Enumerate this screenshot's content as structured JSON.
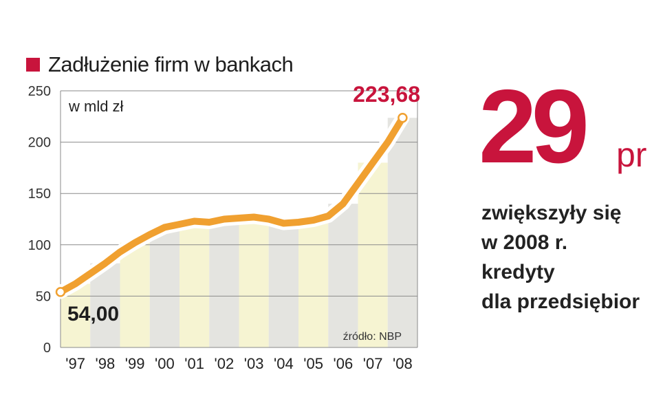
{
  "title": "Zadłużenie firm w bankach",
  "accent_color": "#c8143c",
  "line_color": "#f0a030",
  "big_number": "29",
  "big_unit": "pr",
  "side_text_lines": [
    "zwiększyły się",
    "w 2008 r.",
    "kredyty",
    "dla przedsiębior"
  ],
  "chart_data": {
    "type": "line",
    "title": "Zadłużenie firm w bankach",
    "unit_label": "w mld zł",
    "source": "źródło: NBP",
    "ylim": [
      0,
      250
    ],
    "yticks": [
      0,
      50,
      100,
      150,
      200,
      250
    ],
    "x_tick_labels": [
      "'97",
      "'98",
      "'99",
      "'00",
      "'01",
      "'02",
      "'03",
      "'04",
      "'05",
      "'06",
      "'07",
      "'08"
    ],
    "grid": true,
    "x": [
      1997.0,
      1997.5,
      1998.0,
      1998.5,
      1999.0,
      1999.5,
      2000.0,
      2000.5,
      2001.0,
      2001.5,
      2002.0,
      2002.5,
      2003.0,
      2003.5,
      2004.0,
      2004.5,
      2005.0,
      2005.5,
      2006.0,
      2006.5,
      2007.0,
      2007.5,
      2008.0,
      2008.5
    ],
    "values": [
      54,
      62,
      72,
      82,
      93,
      102,
      110,
      117,
      120,
      123,
      122,
      125,
      126,
      127,
      125,
      121,
      122,
      124,
      128,
      140,
      160,
      180,
      200,
      223.68
    ],
    "annotations": [
      {
        "label": "54,00",
        "x": 1997.0,
        "y": 54
      },
      {
        "label": "223,68",
        "x": 2008.5,
        "y": 223.68
      }
    ]
  }
}
